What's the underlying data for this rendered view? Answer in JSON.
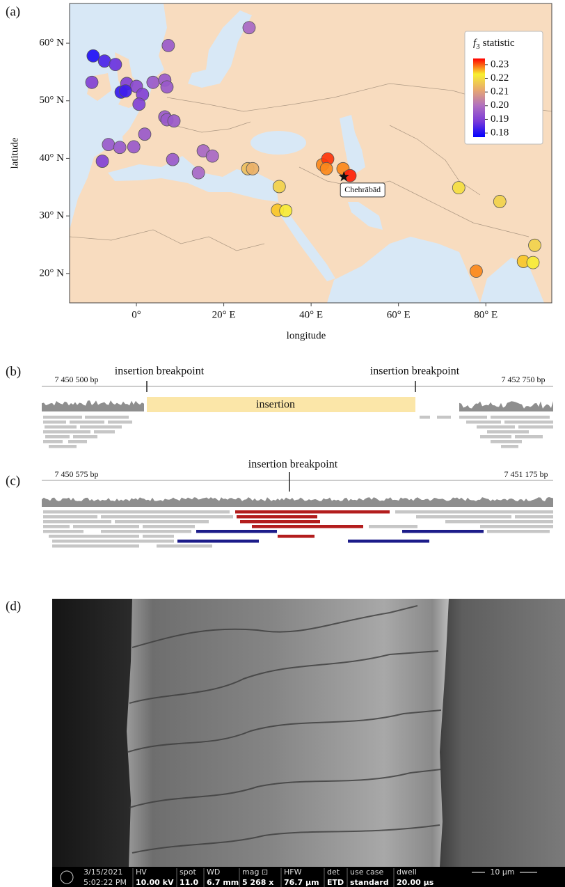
{
  "panel_labels": [
    "(a)",
    "(b)",
    "(c)",
    "(d)"
  ],
  "chart_data": {
    "type": "scatter",
    "x_label": "longitude",
    "y_label": "latitude",
    "xlim": [
      -15.3,
      95.1
    ],
    "ylim": [
      14.9,
      66.9
    ],
    "xticks": [
      {
        "value": 0,
        "label": "0°"
      },
      {
        "value": 20,
        "label": "20° E"
      },
      {
        "value": 40,
        "label": "40° E"
      },
      {
        "value": 60,
        "label": "60° E"
      },
      {
        "value": 80,
        "label": "80° E"
      }
    ],
    "yticks": [
      {
        "value": 20,
        "label": "20° N"
      },
      {
        "value": 30,
        "label": "30° N"
      },
      {
        "value": 40,
        "label": "40° N"
      },
      {
        "value": 50,
        "label": "50° N"
      },
      {
        "value": 60,
        "label": "60° N"
      }
    ],
    "x": [
      -9.9,
      -7.3,
      -4.8,
      -10.2,
      -2.2,
      0,
      -3.5,
      -2.5,
      1.4,
      0.6,
      3.8,
      6.5,
      7.0,
      7.3,
      25.8,
      1.9,
      6.5,
      7.0,
      8.6,
      -6.4,
      -3.8,
      -0.6,
      -7.8,
      8.3,
      15.3,
      17.4,
      14.2,
      25.5,
      26.6,
      32.7,
      32.3,
      34.2,
      42.6,
      43.8,
      43.5,
      47.3,
      48.9,
      73.8,
      83.2,
      91.2,
      88.6,
      90.8,
      77.8
    ],
    "y": [
      57.8,
      56.9,
      56.3,
      53.2,
      53.0,
      52.5,
      51.5,
      51.7,
      51.1,
      49.4,
      53.2,
      53.6,
      52.4,
      59.6,
      62.7,
      44.2,
      47.2,
      46.7,
      46.5,
      42.4,
      41.9,
      42.0,
      39.5,
      39.8,
      41.3,
      40.4,
      37.5,
      38.2,
      38.2,
      35.1,
      31.0,
      30.9,
      38.9,
      39.9,
      38.2,
      38.2,
      37.0,
      34.9,
      32.5,
      24.9,
      22.1,
      21.9,
      20.4
    ],
    "values": [
      0.18,
      0.184,
      0.187,
      0.19,
      0.19,
      0.192,
      0.182,
      0.183,
      0.19,
      0.19,
      0.195,
      0.195,
      0.195,
      0.195,
      0.198,
      0.195,
      0.195,
      0.195,
      0.195,
      0.195,
      0.195,
      0.195,
      0.19,
      0.195,
      0.198,
      0.198,
      0.198,
      0.215,
      0.213,
      0.218,
      0.225,
      0.222,
      0.228,
      0.232,
      0.228,
      0.228,
      0.233,
      0.22,
      0.218,
      0.218,
      0.225,
      0.222,
      0.228
    ],
    "colorbar": {
      "title_symbol": "f",
      "title_subscript": "3",
      "title_text": "statistic",
      "lim": [
        0.177,
        0.2345
      ],
      "ticks": [
        0.18,
        0.19,
        {
          "value": 0.2,
          "label": "0.20"
        },
        0.21,
        0.22,
        0.23
      ],
      "colors": [
        "#0000ff",
        "#7a3ad8",
        "#b070c0",
        "#e8a870",
        "#f8f030",
        "#ff0000"
      ]
    },
    "annotation": {
      "text": "Chehrābād",
      "x": 47.5,
      "y": 36.8
    }
  },
  "track_b": {
    "start": "7 450 500 bp",
    "end": "7 452 750 bp",
    "breakpoints": [
      "insertion breakpoint",
      "insertion breakpoint"
    ],
    "insertion": "insertion"
  },
  "track_c": {
    "start": "7 450 575 bp",
    "end": "7 451 175 bp",
    "breakpoint": "insertion breakpoint"
  },
  "micrograph": {
    "date": "3/15/2021",
    "time": "5:02:22 PM",
    "fields": [
      {
        "label": "HV",
        "value": "10.00 kV"
      },
      {
        "label": "spot",
        "value": "11.0"
      },
      {
        "label": "WD",
        "value": "6.7 mm"
      },
      {
        "label": "mag ⊡",
        "value": "5 268 x"
      },
      {
        "label": "HFW",
        "value": "76.7 µm"
      },
      {
        "label": "det",
        "value": "ETD"
      },
      {
        "label": "use case",
        "value": "standard"
      },
      {
        "label": "dwell",
        "value": "20.00 µs"
      }
    ],
    "scale_bar": "10 µm"
  }
}
